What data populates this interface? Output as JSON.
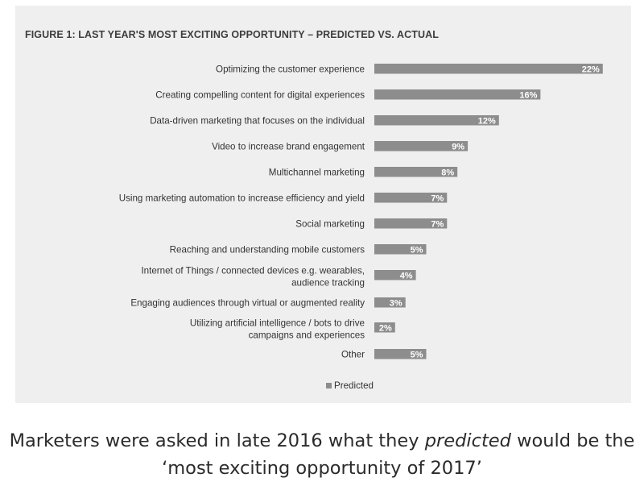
{
  "chart_data": {
    "type": "bar",
    "orientation": "horizontal",
    "title": "FIGURE 1: LAST YEAR'S MOST EXCITING OPPORTUNITY – PREDICTED VS. ACTUAL",
    "categories": [
      [
        "Optimizing the customer experience"
      ],
      [
        "Creating compelling content for digital experiences"
      ],
      [
        "Data-driven marketing that focuses on the individual"
      ],
      [
        "Video to increase brand engagement"
      ],
      [
        "Multichannel marketing"
      ],
      [
        "Using marketing automation to increase efficiency and yield"
      ],
      [
        "Social marketing"
      ],
      [
        "Reaching and understanding mobile customers"
      ],
      [
        "Internet of Things / connected devices e.g. wearables,",
        "audience tracking"
      ],
      [
        "Engaging audiences through virtual or augmented reality"
      ],
      [
        "Utilizing artificial intelligence / bots to drive",
        "campaigns and experiences"
      ],
      [
        "Other"
      ]
    ],
    "series": [
      {
        "name": "Predicted",
        "color": "#8d8d8d",
        "values": [
          22,
          16,
          12,
          9,
          8,
          7,
          7,
          5,
          4,
          3,
          2,
          5
        ],
        "labels": [
          "22%",
          "16%",
          "12%",
          "9%",
          "8%",
          "7%",
          "7%",
          "5%",
          "4%",
          "3%",
          "2%",
          "5%"
        ]
      }
    ],
    "legend": {
      "position": "bottom-center"
    },
    "grid": false
  },
  "caption": {
    "part1": "Marketers were asked in late 2016 what they ",
    "emphasis": "predicted",
    "part2": " would be the ‘most exciting opportunity of 2017’"
  }
}
